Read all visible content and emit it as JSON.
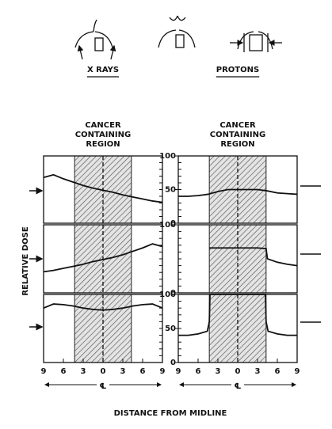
{
  "figure": {
    "ylabel": "RELATIVE DOSE",
    "xlabel": "DISTANCE FROM MIDLINE",
    "midline": "℄"
  },
  "chart_data": [
    {
      "type": "line",
      "title": "X RAYS",
      "annotation": [
        "CANCER",
        "CONTAINING",
        "REGION"
      ],
      "region": [
        -4.3,
        4.3
      ],
      "x": [
        -9,
        -7.5,
        -6,
        -4.5,
        -3,
        -1.5,
        0,
        1.5,
        3,
        4.5,
        6,
        7.5,
        9
      ],
      "values": [
        68,
        72,
        66,
        61,
        56,
        52,
        49,
        46,
        42,
        39,
        36,
        33,
        31
      ],
      "ylim": [
        0,
        100
      ],
      "xlim": [
        -9,
        9
      ]
    },
    {
      "type": "line",
      "title": "PROTONS",
      "annotation": [
        "CANCER",
        "CONTAINING",
        "REGION"
      ],
      "region": [
        -4.3,
        4.3
      ],
      "x": [
        -9,
        -7.5,
        -6,
        -4.5,
        -3,
        -1.5,
        0,
        1.5,
        3,
        4.5,
        6,
        7.5,
        9
      ],
      "values": [
        40,
        40,
        41,
        43,
        47,
        50,
        50,
        50,
        50,
        48,
        45,
        44,
        43
      ],
      "ylim": [
        0,
        100
      ],
      "xlim": [
        -9,
        9
      ],
      "yticks": [
        0,
        50,
        100
      ]
    },
    {
      "type": "line",
      "region": [
        -4.3,
        4.3
      ],
      "x": [
        -9,
        -7.5,
        -6,
        -4.5,
        -3,
        -1.5,
        0,
        1.5,
        3,
        4.5,
        6,
        7.5,
        9
      ],
      "values": [
        31,
        33,
        36,
        39,
        42,
        46,
        49,
        52,
        56,
        61,
        66,
        72,
        68
      ],
      "ylim": [
        0,
        100
      ],
      "xlim": [
        -9,
        9
      ]
    },
    {
      "type": "line",
      "region": [
        -4.3,
        4.3
      ],
      "x": [
        -9,
        -7.5,
        -6,
        -4.5,
        -4.3,
        -3,
        -1.5,
        0,
        1.5,
        3,
        4.3,
        4.5,
        6,
        7.5,
        9
      ],
      "values": [
        null,
        null,
        null,
        null,
        66,
        66,
        66,
        66,
        66,
        66,
        65,
        50,
        45,
        42,
        40
      ],
      "ylim": [
        0,
        100
      ],
      "xlim": [
        -9,
        9
      ],
      "yticks": [
        0,
        100
      ]
    },
    {
      "type": "line",
      "region": [
        -4.3,
        4.3
      ],
      "x": [
        -9,
        -7.5,
        -6,
        -4.5,
        -3,
        -1.5,
        0,
        1.5,
        3,
        4.5,
        6,
        7.5,
        9
      ],
      "values": [
        80,
        86,
        85,
        83,
        80,
        78,
        77,
        78,
        80,
        83,
        85,
        86,
        80
      ],
      "ylim": [
        0,
        100
      ],
      "xlim": [
        -9,
        9
      ],
      "xticks": [
        {
          "value": -9,
          "label": "9"
        },
        {
          "value": -6,
          "label": "6"
        },
        {
          "value": -3,
          "label": "3"
        },
        0,
        3,
        6,
        9
      ]
    },
    {
      "type": "line",
      "region": [
        -4.3,
        4.3
      ],
      "x": [
        -9,
        -7.5,
        -6,
        -4.6,
        -4.3,
        -4.2,
        0,
        4.2,
        4.3,
        4.6,
        6,
        7.5,
        9
      ],
      "values": [
        40,
        40,
        42,
        46,
        60,
        100,
        100,
        100,
        60,
        46,
        42,
        40,
        40
      ],
      "ylim": [
        0,
        100
      ],
      "xlim": [
        -9,
        9
      ],
      "yticks": [
        0,
        50,
        100
      ],
      "xticks": [
        {
          "value": -9,
          "label": "9"
        },
        {
          "value": -6,
          "label": "6"
        },
        {
          "value": -3,
          "label": "3"
        },
        0,
        3,
        6,
        9
      ]
    }
  ]
}
